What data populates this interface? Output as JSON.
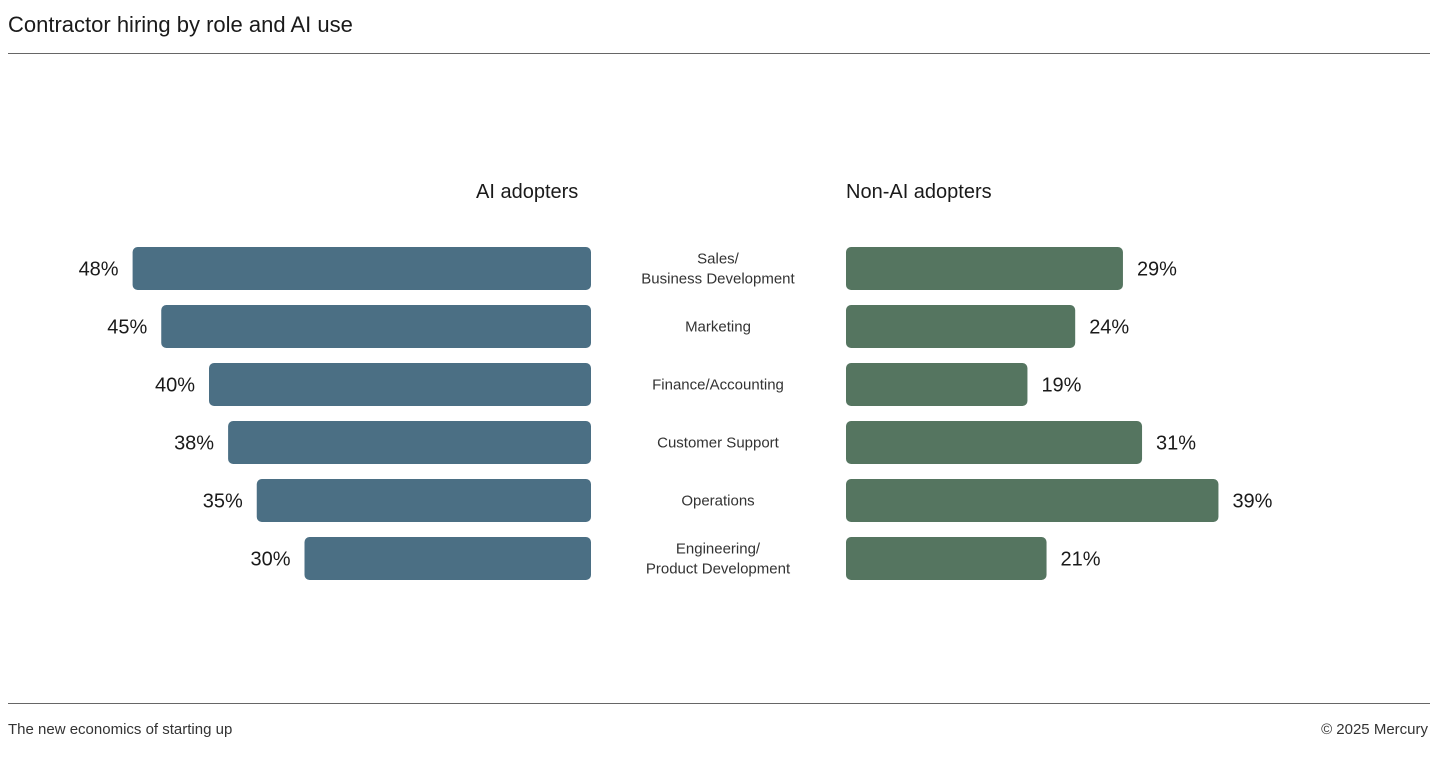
{
  "title": "Contractor hiring by role and AI use",
  "footer": {
    "left": "The new economics of starting up",
    "right": "© 2025 Mercury"
  },
  "chart_data": {
    "type": "bar",
    "orientation": "horizontal-butterfly",
    "categories": [
      [
        "Sales/",
        "Business Development"
      ],
      [
        "Marketing"
      ],
      [
        "Finance/Accounting"
      ],
      [
        "Customer Support"
      ],
      [
        "Operations"
      ],
      [
        "Engineering/",
        "Product Development"
      ]
    ],
    "series": [
      {
        "name": "AI adopters",
        "values": [
          48,
          45,
          40,
          38,
          35,
          30
        ],
        "color": "#4b6f84"
      },
      {
        "name": "Non-AI adopters",
        "values": [
          29,
          24,
          19,
          31,
          39,
          21
        ],
        "color": "#557560"
      }
    ],
    "value_format": "percent",
    "grid": false
  }
}
